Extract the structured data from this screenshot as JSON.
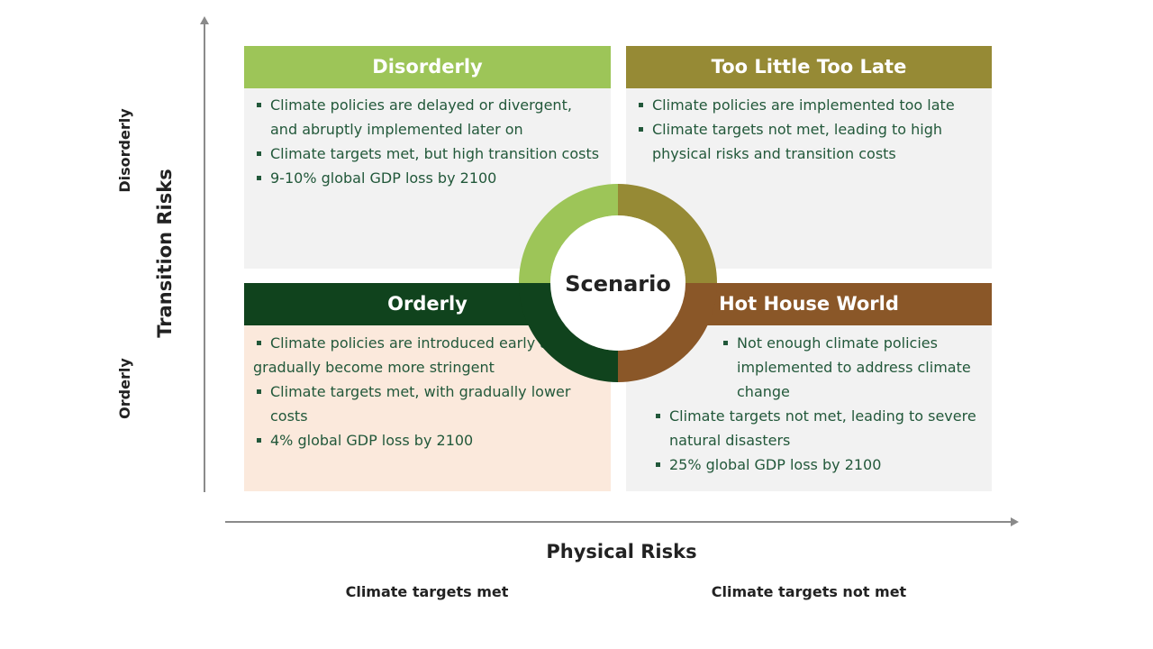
{
  "y_axis": {
    "title": "Transition Risks",
    "top_label": "Disorderly",
    "bottom_label": "Orderly"
  },
  "x_axis": {
    "title": "Physical Risks",
    "left_label": "Climate targets met",
    "right_label": "Climate targets not met"
  },
  "center_label": "Scenario",
  "quadrants": {
    "top_left": {
      "title": "Disorderly",
      "color": "#9dc558",
      "items": [
        "Climate policies are delayed or divergent, and abruptly implemented later on",
        "Climate targets met, but high transition costs",
        "9-10% global GDP loss by 2100"
      ]
    },
    "top_right": {
      "title": "Too Little Too Late",
      "color": "#968a35",
      "items": [
        "Climate policies are implemented too late",
        "Climate targets not met, leading to high physical risks and transition costs"
      ]
    },
    "bottom_left": {
      "title": "Orderly",
      "color": "#10431d",
      "items": [
        "Climate policies are introduced early and gradually become more stringent",
        "Climate targets met, with gradually lower costs",
        "4% global GDP loss by 2100"
      ]
    },
    "bottom_right": {
      "title": "Hot House World",
      "color": "#8a5728",
      "items": [
        "Not enough climate policies implemented to address climate change",
        "Climate targets not met, leading to severe natural disasters",
        "25% global GDP loss by 2100"
      ]
    }
  }
}
